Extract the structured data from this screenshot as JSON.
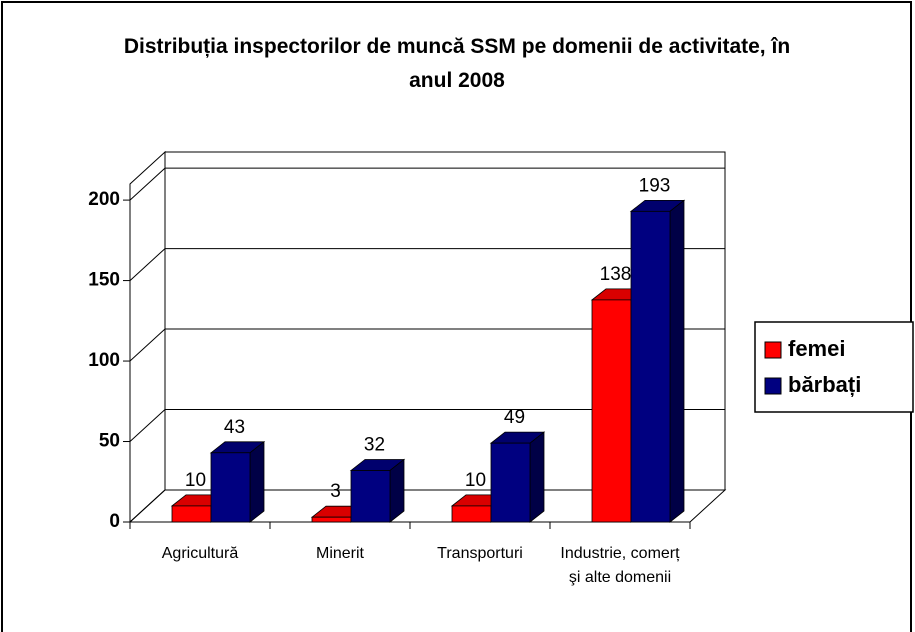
{
  "chart_data": {
    "type": "bar3d",
    "title": "Distribuția inspectorilor de muncă SSM pe domenii de activitate, în anul 2008",
    "categories": [
      "Agricultură",
      "Minerit",
      "Transporturi",
      "Industrie, comerț şi alte domenii"
    ],
    "series": [
      {
        "name": "femei",
        "color": "#ff0000",
        "values": [
          10,
          3,
          10,
          138
        ]
      },
      {
        "name": "bărbați",
        "color": "#000080",
        "values": [
          43,
          32,
          49,
          193
        ]
      }
    ],
    "ylim": [
      0,
      210
    ],
    "yticks": [
      0,
      50,
      100,
      150,
      200
    ],
    "grid": true,
    "legend": "right"
  }
}
